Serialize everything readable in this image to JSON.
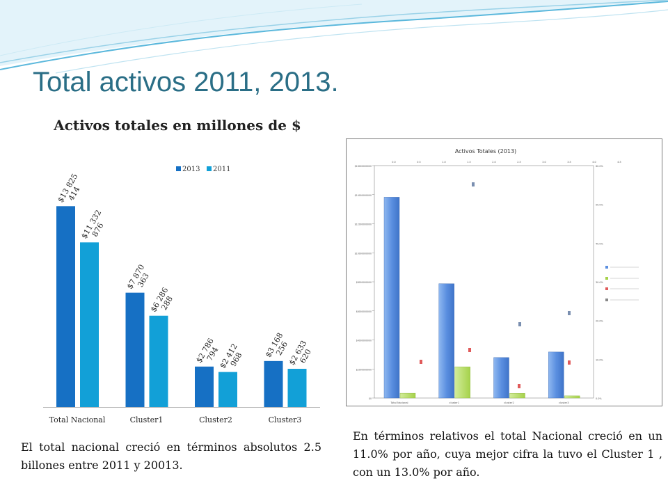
{
  "slide": {
    "title": "Total activos 2011, 2013.",
    "note_left": "El total nacional creció en términos absolutos 2.5 billones entre 2011 y 20013.",
    "note_right": "En términos relativos el total Nacional creció en un 11.0% por año, cuya mejor cifra la tuvo el Cluster 1 , con un 13.0% por año."
  },
  "colors": {
    "series_2013": "#1670c4",
    "series_2011": "#12a0d7",
    "title_text": "#2a6e86",
    "wave_1": "#9ad2e8",
    "wave_2": "#5bb8dc"
  },
  "chart_data": [
    {
      "type": "bar",
      "title": "Activos totales en millones de $",
      "categories": [
        "Total Nacional",
        "Cluster1",
        "Cluster2",
        "Cluster3"
      ],
      "series": [
        {
          "name": "2013",
          "color": "#1670c4",
          "values": [
            13825414,
            7870363,
            2786794,
            3168256
          ],
          "labels": [
            "$13 825 414",
            "$7 870 363",
            "$2 786 794",
            "$3 168 256"
          ]
        },
        {
          "name": "2011",
          "color": "#12a0d7",
          "values": [
            11332876,
            6286288,
            2412968,
            2633620
          ],
          "labels": [
            "$11 332 876",
            "$6 286 288",
            "$2 412 968",
            "$2 633 620"
          ]
        }
      ],
      "legend": "top",
      "grid": false,
      "ylim": [
        0,
        17000000
      ]
    },
    {
      "type": "bar",
      "title": "Activos Totales (2013)",
      "categories": [
        "Total Nacional",
        "cluster1",
        "cluster2",
        "cluster3"
      ],
      "series": [
        {
          "name": "Total",
          "color": "#5b8fe0",
          "values": [
            13825414,
            7870363,
            2786794,
            3168256
          ]
        },
        {
          "name": "Variación",
          "color": "#a6d24a",
          "values": [
            330000,
            2150000,
            320000,
            150000
          ]
        }
      ],
      "legend": "right",
      "grid": false,
      "ylim": [
        0,
        16000000
      ],
      "y_ticks": [
        "$0",
        "$2000000000",
        "$4000000000",
        "$6000000000",
        "$8000000000",
        "$10000000000",
        "$12000000000",
        "$14000000000",
        "$16000000000"
      ],
      "top_ticks": [
        "0.0",
        "0.5",
        "1.0",
        "1.5",
        "2.0",
        "2.5",
        "3.0",
        "3.5",
        "4.0",
        "4.5"
      ],
      "right_ticks": [
        "0.0%",
        "10.0%",
        "20.0%",
        "30.0%",
        "40.0%",
        "50.0%",
        "60.0%"
      ]
    }
  ]
}
